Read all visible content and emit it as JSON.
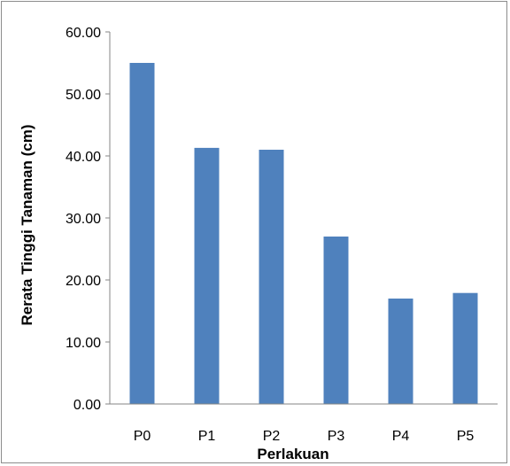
{
  "chart_data": {
    "type": "bar",
    "title": "",
    "xlabel": "Perlakuan",
    "ylabel": "Rerata Tinggi Tanaman (cm)",
    "categories": [
      "P0",
      "P1",
      "P2",
      "P3",
      "P4",
      "P5"
    ],
    "values": [
      55.0,
      41.3,
      41.0,
      27.0,
      17.0,
      17.9
    ],
    "ylim": [
      0,
      60
    ],
    "yticks": [
      0,
      10,
      20,
      30,
      40,
      50,
      60
    ],
    "ytick_labels": [
      "0.00",
      "10.00",
      "20.00",
      "30.00",
      "40.00",
      "50.00",
      "60.00"
    ],
    "grid": false,
    "legend": "none",
    "colors": {
      "bar": "#4f81bd",
      "axis": "#868686",
      "frame": "#8c8c8c"
    }
  }
}
